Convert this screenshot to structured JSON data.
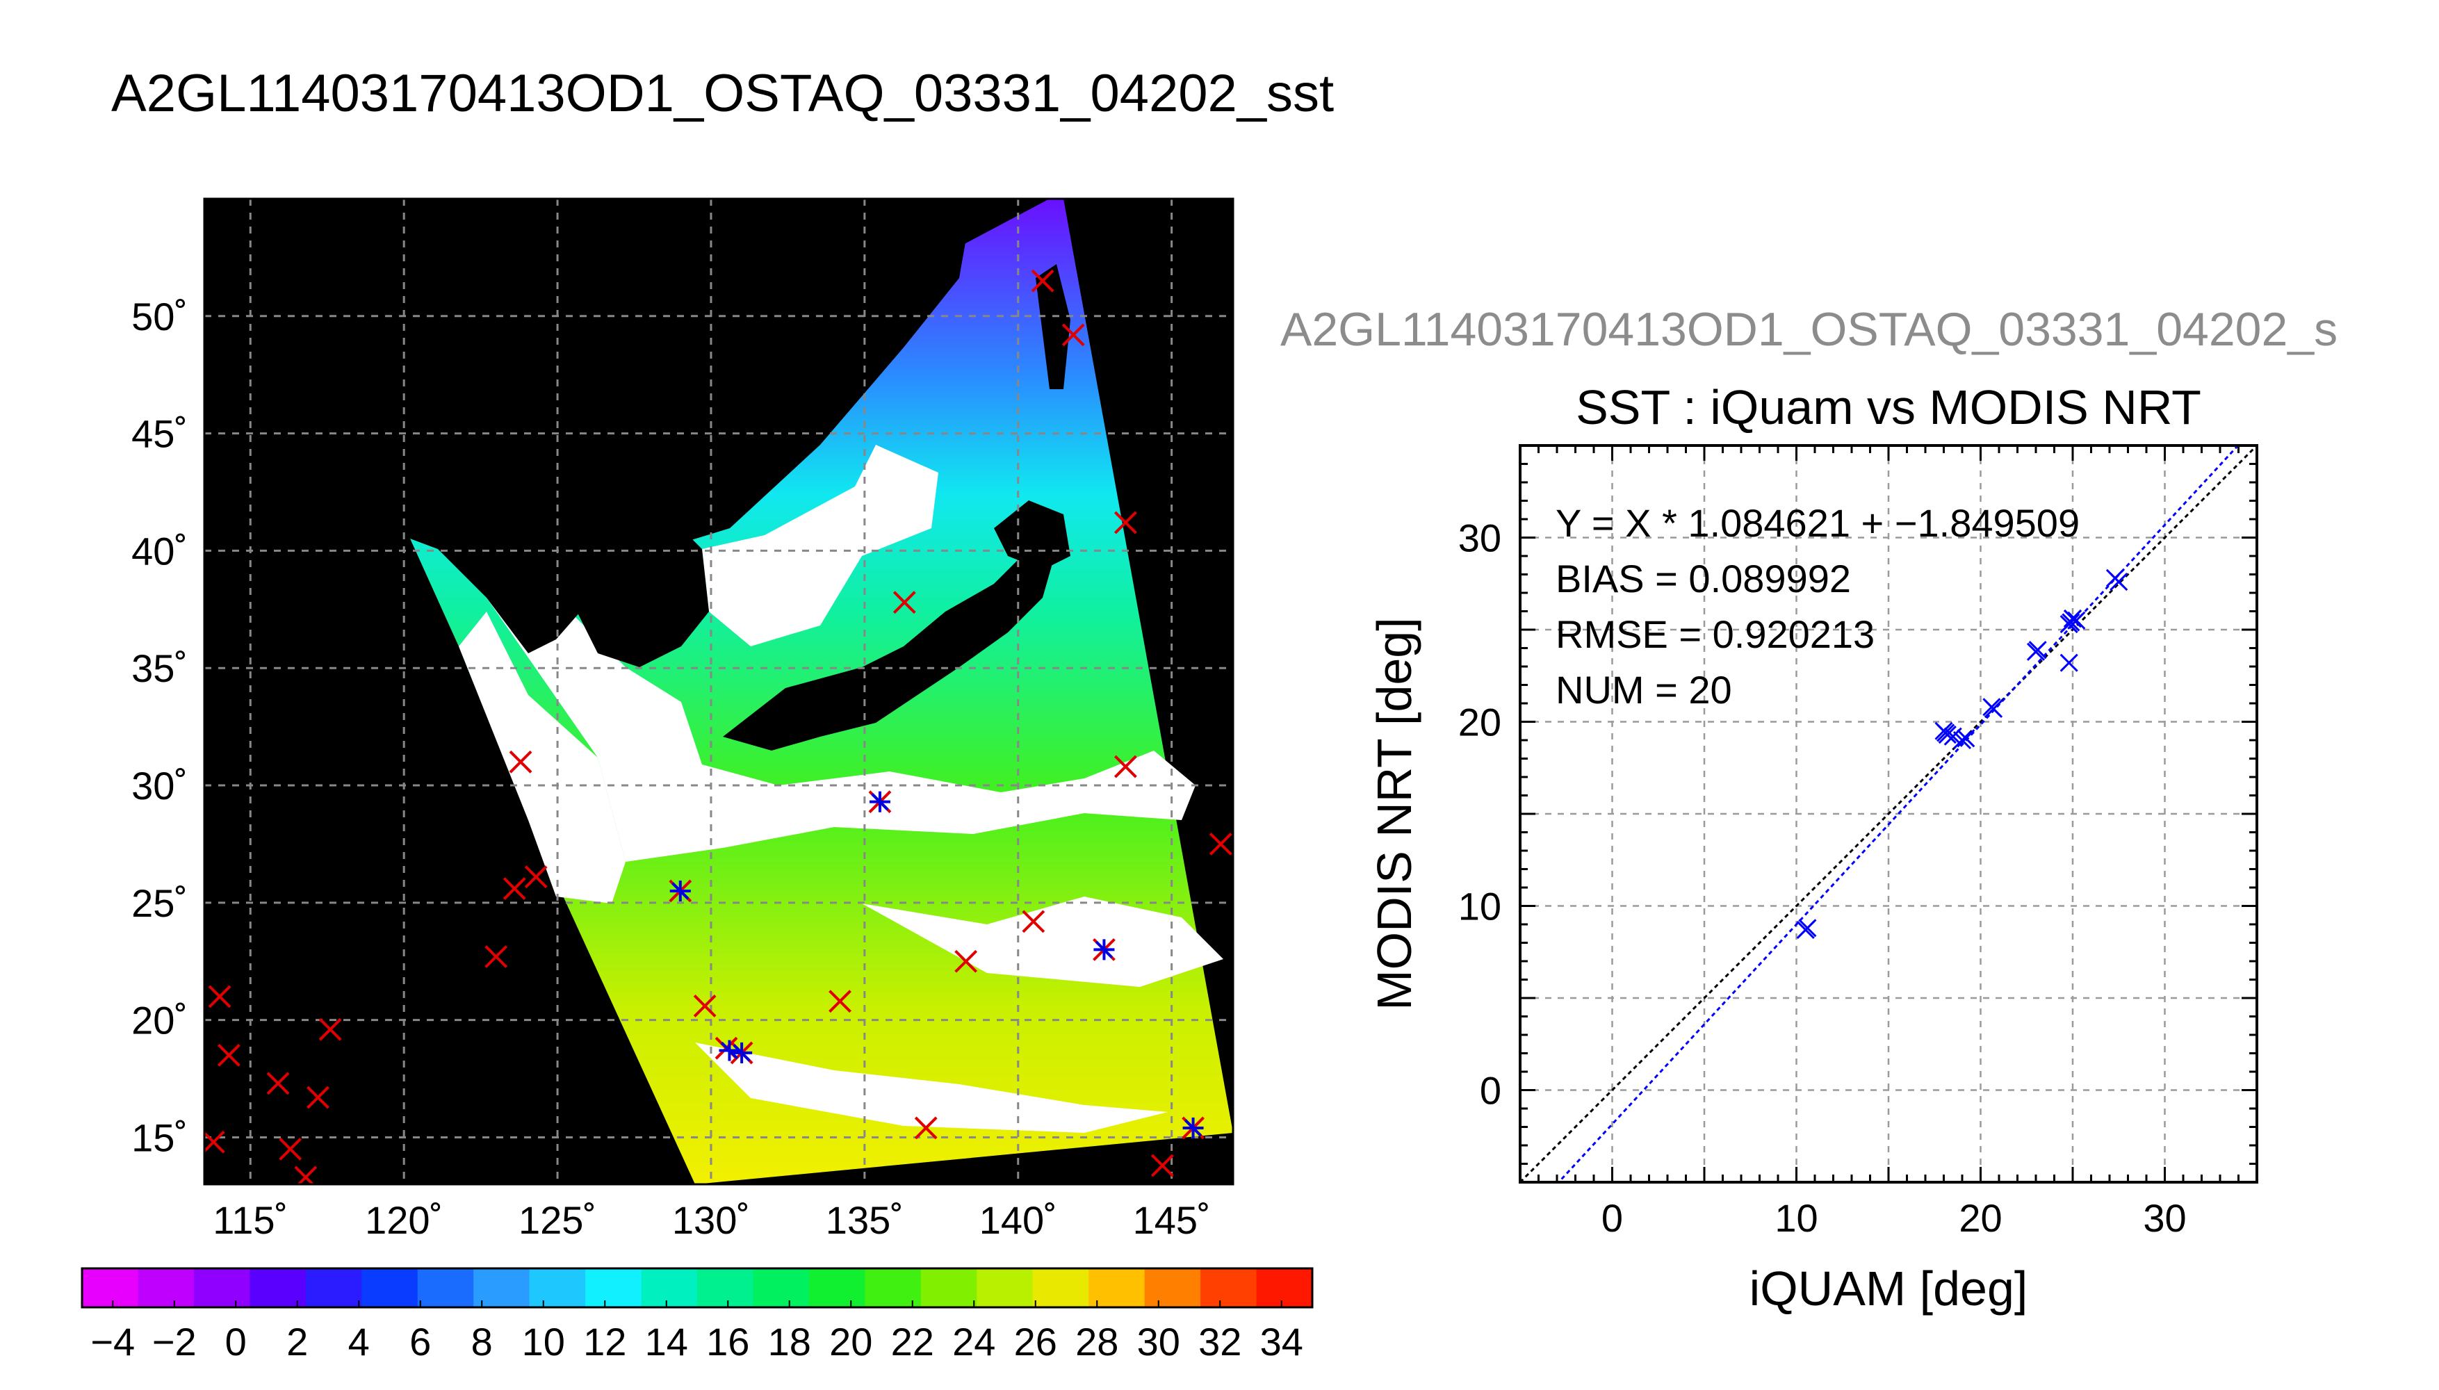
{
  "main_title": "A2GL11403170413OD1_OSTAQ_03331_04202_sst",
  "map": {
    "lon_ticks": [
      "115˚",
      "120˚",
      "125˚",
      "130˚",
      "135˚",
      "140˚",
      "145˚"
    ],
    "lat_ticks": [
      "50˚",
      "45˚",
      "40˚",
      "35˚",
      "30˚",
      "25˚",
      "20˚",
      "15˚"
    ],
    "lon_range": [
      113.5,
      147
    ],
    "lat_range": [
      13,
      55
    ],
    "iquam_points_red_x": [
      [
        140.8,
        51.5
      ],
      [
        141.8,
        49.2
      ],
      [
        143.5,
        41.2
      ],
      [
        136.3,
        37.8
      ],
      [
        143.5,
        30.8
      ],
      [
        123.8,
        31.0
      ],
      [
        146.6,
        27.5
      ],
      [
        124.3,
        26.1
      ],
      [
        123.6,
        25.6
      ],
      [
        129.0,
        25.5
      ],
      [
        135.5,
        29.3
      ],
      [
        140.5,
        24.2
      ],
      [
        142.8,
        23.0
      ],
      [
        123.0,
        22.7
      ],
      [
        138.3,
        22.5
      ],
      [
        134.2,
        20.8
      ],
      [
        129.8,
        20.6
      ],
      [
        130.5,
        18.8
      ],
      [
        131.0,
        18.6
      ],
      [
        114.0,
        21.0
      ],
      [
        114.3,
        18.5
      ],
      [
        115.9,
        17.3
      ],
      [
        117.6,
        19.6
      ],
      [
        117.2,
        16.7
      ],
      [
        116.3,
        14.5
      ],
      [
        113.8,
        14.8
      ],
      [
        116.8,
        13.3
      ],
      [
        137.0,
        15.4
      ],
      [
        145.7,
        15.4
      ],
      [
        144.7,
        13.8
      ]
    ],
    "matchup_points_blue_asterisk": [
      [
        135.5,
        29.3
      ],
      [
        129.0,
        25.5
      ],
      [
        142.8,
        23.0
      ],
      [
        130.6,
        18.7
      ],
      [
        131.0,
        18.6
      ],
      [
        145.7,
        15.4
      ]
    ]
  },
  "colorbar": {
    "tick_labels": [
      "−4",
      "−2",
      "0",
      "2",
      "4",
      "6",
      "8",
      "10",
      "12",
      "14",
      "16",
      "18",
      "20",
      "22",
      "24",
      "26",
      "28",
      "30",
      "32",
      "34"
    ],
    "range": [
      -5,
      35
    ],
    "colors": [
      "#e800ff",
      "#c000ff",
      "#9000ff",
      "#5a00ff",
      "#2a1cff",
      "#0a3cff",
      "#1a6cff",
      "#2a9cff",
      "#1ec8ff",
      "#10f0ff",
      "#00f0c0",
      "#00f090",
      "#00f060",
      "#10f030",
      "#40f010",
      "#80f000",
      "#b8f000",
      "#e8e800",
      "#ffc000",
      "#ff8000",
      "#ff4000",
      "#ff1800"
    ]
  },
  "chart_data": {
    "type": "scatter",
    "overlay_title": "A2GL11403170413OD1_OSTAQ_03331_04202_s",
    "title": "SST : iQuam vs MODIS NRT",
    "xlabel": "iQUAM [deg]",
    "ylabel": "MODIS NRT [deg]",
    "xlim": [
      -5,
      35
    ],
    "ylim": [
      -5,
      35
    ],
    "xticks": [
      "0",
      "10",
      "20",
      "30"
    ],
    "yticks": [
      "0",
      "10",
      "20",
      "30"
    ],
    "grid": true,
    "stats": [
      "Y = X * 1.084621 + −1.849509",
      "BIAS = 0.089992",
      "RMSE = 0.920213",
      "NUM = 20"
    ],
    "regression": {
      "slope": 1.084621,
      "intercept": -1.849509,
      "color": "#0000ff"
    },
    "one_to_one_color": "#000000",
    "points_color": "#0000ff",
    "x": [
      10.5,
      18.0,
      18.2,
      19.0,
      20.7,
      23.0,
      24.8,
      24.9,
      25.0,
      27.3,
      18.5,
      19.2,
      24.8,
      25.2,
      27.5,
      10.6,
      18.1,
      23.1,
      25.0,
      20.6
    ],
    "y": [
      8.7,
      19.5,
      19.3,
      19.0,
      20.7,
      23.8,
      23.2,
      25.4,
      25.6,
      27.8,
      19.2,
      19.1,
      25.3,
      25.5,
      27.6,
      8.8,
      19.4,
      23.9,
      25.6,
      20.8
    ]
  }
}
